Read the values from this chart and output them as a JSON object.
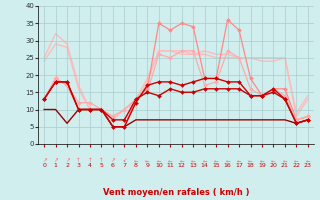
{
  "title": "",
  "xlabel": "Vent moyen/en rafales ( km/h )",
  "ylabel": "",
  "background_color": "#d0eeee",
  "grid_color": "#aacccc",
  "xlim": [
    0,
    23
  ],
  "ylim": [
    0,
    40
  ],
  "xticks": [
    0,
    1,
    2,
    3,
    4,
    5,
    6,
    7,
    8,
    9,
    10,
    11,
    12,
    13,
    14,
    15,
    16,
    17,
    18,
    19,
    20,
    21,
    22,
    23
  ],
  "yticks": [
    0,
    5,
    10,
    15,
    20,
    25,
    30,
    35,
    40
  ],
  "series": [
    {
      "y": [
        25,
        32,
        29,
        17,
        10,
        10,
        8,
        10,
        13,
        19,
        27,
        27,
        27,
        26,
        27,
        26,
        26,
        25,
        25,
        25,
        25,
        25,
        9,
        14
      ],
      "color": "#ffbbbb",
      "marker": null,
      "linewidth": 1.0,
      "zorder": 1
    },
    {
      "y": [
        24,
        29,
        28,
        16,
        10,
        10,
        7,
        10,
        12,
        18,
        27,
        27,
        26,
        26,
        26,
        25,
        25,
        25,
        25,
        24,
        24,
        25,
        8,
        13
      ],
      "color": "#ffbbbb",
      "marker": null,
      "linewidth": 1.0,
      "zorder": 1
    },
    {
      "y": [
        13,
        19,
        17,
        10,
        10,
        10,
        5,
        5,
        13,
        16,
        35,
        33,
        35,
        34,
        19,
        19,
        36,
        33,
        19,
        14,
        16,
        16,
        7,
        8
      ],
      "color": "#ff8888",
      "marker": "D",
      "markersize": 2.0,
      "linewidth": 0.9,
      "zorder": 2
    },
    {
      "y": [
        13,
        19,
        17,
        12,
        12,
        10,
        8,
        10,
        13,
        15,
        26,
        25,
        27,
        27,
        17,
        18,
        27,
        25,
        16,
        14,
        16,
        14,
        7,
        8
      ],
      "color": "#ffaaaa",
      "marker": "D",
      "markersize": 2.0,
      "linewidth": 0.9,
      "zorder": 2
    },
    {
      "y": [
        13,
        18,
        18,
        10,
        10,
        10,
        5,
        5,
        12,
        17,
        18,
        18,
        17,
        18,
        19,
        19,
        18,
        18,
        14,
        14,
        16,
        13,
        6,
        7
      ],
      "color": "#cc0000",
      "marker": "D",
      "markersize": 2.0,
      "linewidth": 1.0,
      "zorder": 4
    },
    {
      "y": [
        13,
        18,
        18,
        10,
        10,
        10,
        7,
        7,
        13,
        15,
        14,
        16,
        15,
        15,
        16,
        16,
        16,
        16,
        14,
        14,
        15,
        13,
        6,
        7
      ],
      "color": "#cc0000",
      "marker": "D",
      "markersize": 2.0,
      "linewidth": 1.0,
      "zorder": 4
    },
    {
      "y": [
        10,
        10,
        6,
        10,
        10,
        10,
        5,
        5,
        7,
        7,
        7,
        7,
        7,
        7,
        7,
        7,
        7,
        7,
        7,
        7,
        7,
        7,
        6,
        7
      ],
      "color": "#990000",
      "marker": null,
      "linewidth": 1.0,
      "zorder": 3
    }
  ],
  "arrow_chars": [
    "↗",
    "↗",
    "↗",
    "↑",
    "↑",
    "↑",
    "↗",
    "↙",
    "←",
    "←",
    "←",
    "←",
    "←",
    "←",
    "←",
    "←",
    "←",
    "←",
    "←",
    "←",
    "←",
    "←",
    "←",
    "←"
  ],
  "arrow_color": "#ff6666"
}
